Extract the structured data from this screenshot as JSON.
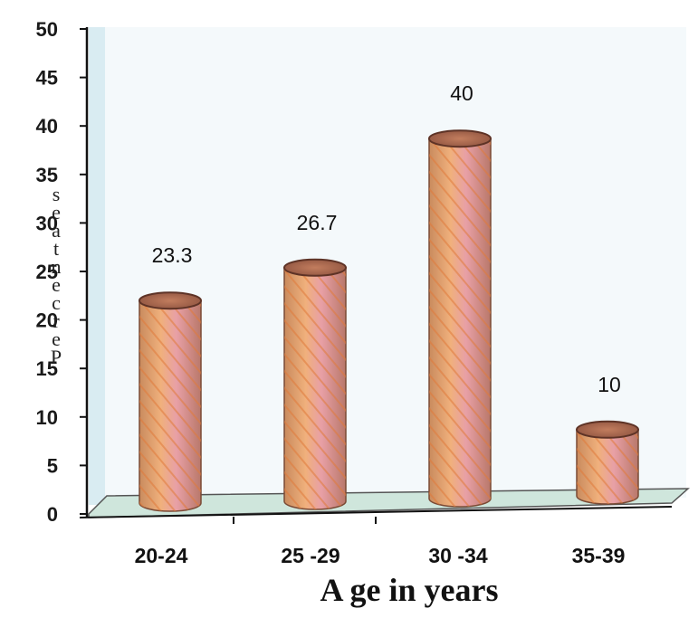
{
  "chart_data": {
    "type": "bar",
    "categories": [
      "20-24",
      "25 -29",
      "30 -34",
      "35-39"
    ],
    "values": [
      23.3,
      26.7,
      40,
      10
    ],
    "data_labels": [
      "23.3",
      "26.7",
      "40",
      "10"
    ],
    "xlabel": "A ge in years",
    "ylabel": "Percentage",
    "ylabel_letters": [
      "s",
      "e",
      "a",
      "t",
      "n",
      "e",
      "c",
      "r",
      "e",
      "P"
    ],
    "ylim": [
      0,
      50
    ],
    "yticks": [
      0,
      5,
      10,
      15,
      20,
      25,
      30,
      35,
      40,
      45,
      50
    ],
    "grid": false,
    "style": "3d-cylinder",
    "colors": {
      "bar_orange": "#e8a56e",
      "bar_pink": "#e6a0a6",
      "bar_dark": "#9a5a3a",
      "wall": "#e9f3f7",
      "floor": "#cfe6dc",
      "axis": "#111111"
    }
  }
}
